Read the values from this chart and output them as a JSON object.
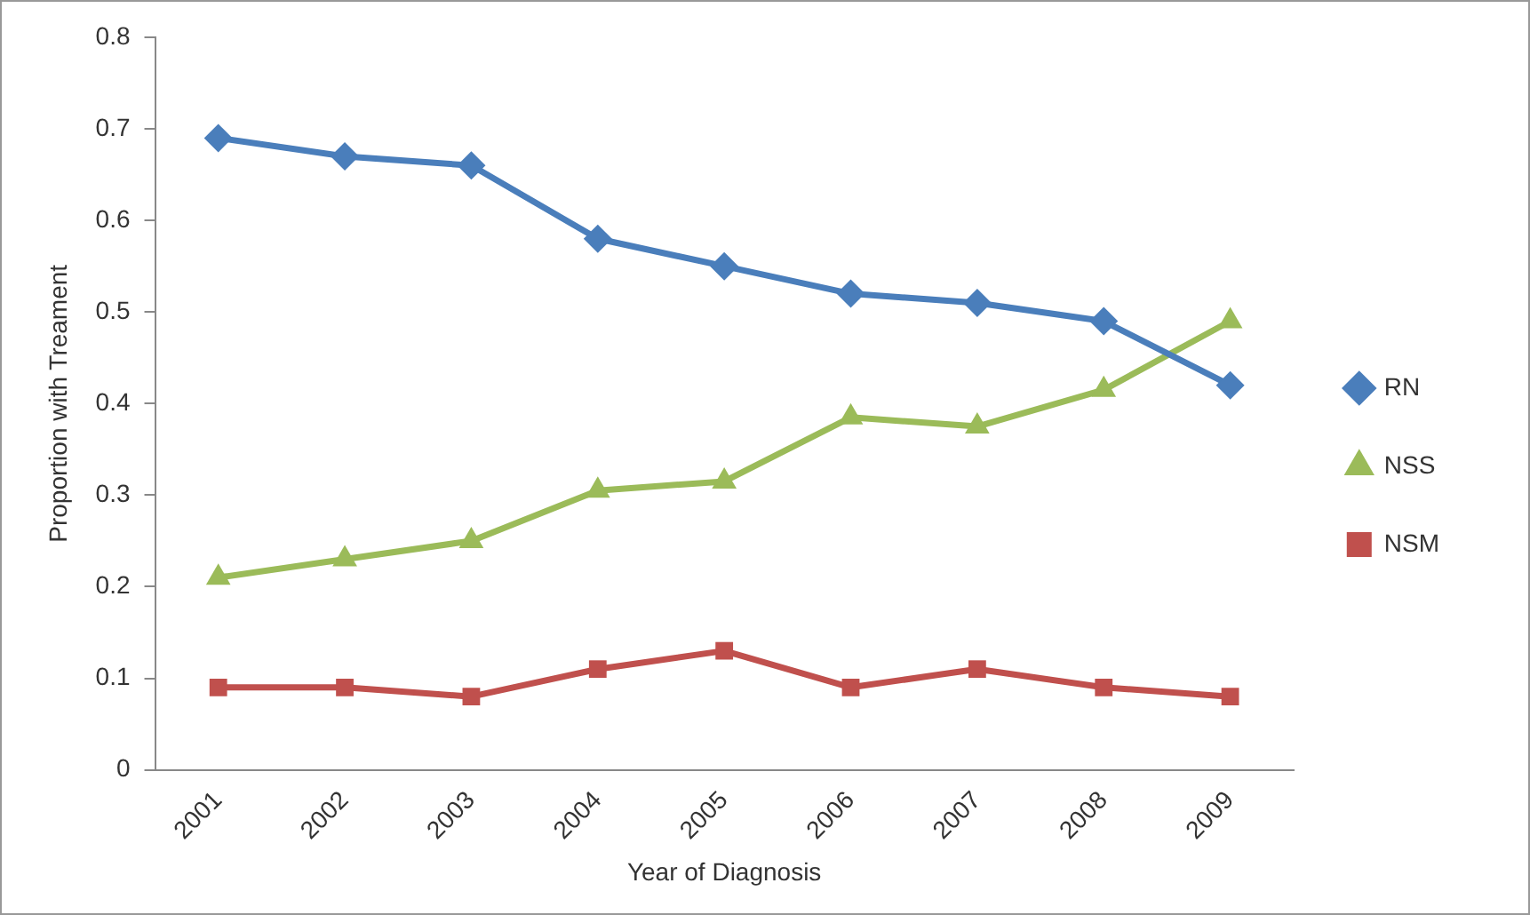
{
  "chart_data": {
    "type": "line",
    "xlabel": "Year of Diagnosis",
    "ylabel": "Proportion with Treament",
    "categories": [
      "2001",
      "2002",
      "2003",
      "2004",
      "2005",
      "2006",
      "2007",
      "2008",
      "2009"
    ],
    "series": [
      {
        "name": "RN",
        "color": "#4a7ebb",
        "marker": "diamond",
        "values": [
          0.69,
          0.67,
          0.66,
          0.58,
          0.55,
          0.52,
          0.51,
          0.49,
          0.42
        ]
      },
      {
        "name": "NSS",
        "color": "#9bbb59",
        "marker": "triangle",
        "values": [
          0.21,
          0.23,
          0.25,
          0.305,
          0.315,
          0.385,
          0.375,
          0.415,
          0.49
        ]
      },
      {
        "name": "NSM",
        "color": "#c0504d",
        "marker": "square",
        "values": [
          0.09,
          0.09,
          0.08,
          0.11,
          0.13,
          0.09,
          0.11,
          0.09,
          0.08
        ]
      }
    ],
    "ylim": [
      0,
      0.8
    ],
    "yticks": [
      0,
      0.1,
      0.2,
      0.3,
      0.4,
      0.5,
      0.6,
      0.7,
      0.8
    ],
    "grid": false,
    "legend": "right",
    "line_style": "solid"
  }
}
